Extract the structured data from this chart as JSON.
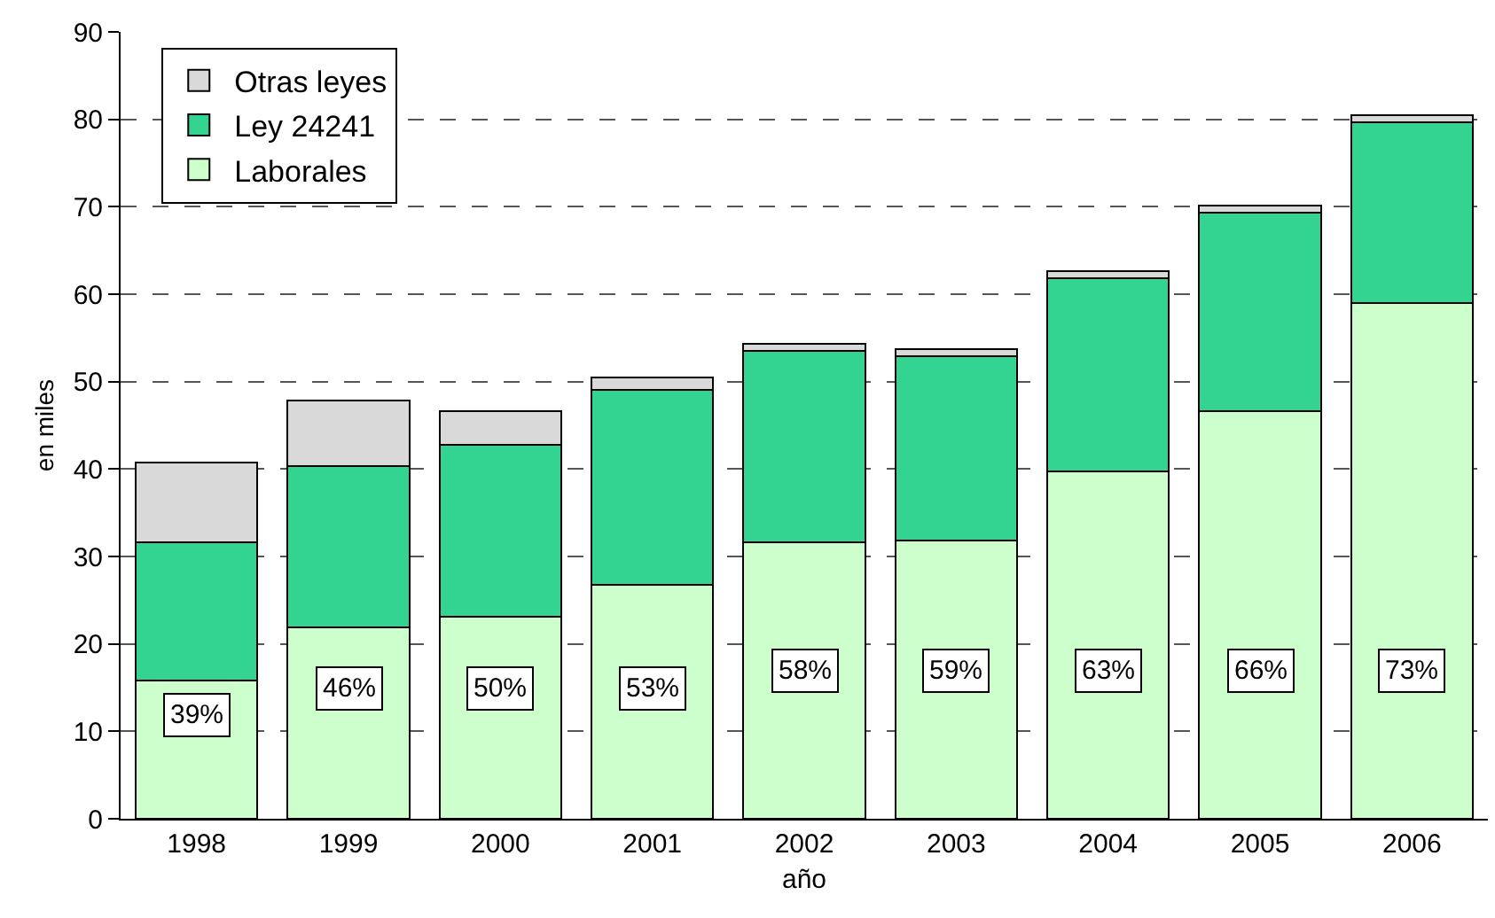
{
  "chart_data": {
    "type": "bar",
    "stacked": true,
    "xlabel": "año",
    "ylabel": "en miles",
    "categories": [
      "1998",
      "1999",
      "2000",
      "2001",
      "2002",
      "2003",
      "2004",
      "2005",
      "2006"
    ],
    "series": [
      {
        "name": "Laborales",
        "color": "#ccffcc",
        "values": [
          15.8,
          21.9,
          23.1,
          26.8,
          31.6,
          31.8,
          39.7,
          46.6,
          59.0
        ]
      },
      {
        "name": "Ley 24241",
        "color": "#33d491",
        "values": [
          15.8,
          18.4,
          19.7,
          22.3,
          21.9,
          21.1,
          22.1,
          22.7,
          20.7
        ]
      },
      {
        "name": "Otras leyes",
        "color": "#d9d9d9",
        "values": [
          9.1,
          7.5,
          3.8,
          1.4,
          0.8,
          0.8,
          0.8,
          0.8,
          0.8
        ]
      }
    ],
    "ylim": [
      0,
      90
    ],
    "yticks": [
      0,
      10,
      20,
      30,
      40,
      50,
      60,
      70,
      80,
      90
    ],
    "grid": "y",
    "legend": "top left",
    "annotations": [
      {
        "text": "39%",
        "x": "1998",
        "y": 11.8
      },
      {
        "text": "46%",
        "x": "1999",
        "y": 15
      },
      {
        "text": "50%",
        "x": "2000",
        "y": 15
      },
      {
        "text": "53%",
        "x": "2001",
        "y": 15
      },
      {
        "text": "58%",
        "x": "2002",
        "y": 17
      },
      {
        "text": "59%",
        "x": "2003",
        "y": 17
      },
      {
        "text": "63%",
        "x": "2004",
        "y": 17
      },
      {
        "text": "66%",
        "x": "2005",
        "y": 17
      },
      {
        "text": "73%",
        "x": "2006",
        "y": 17
      }
    ]
  }
}
